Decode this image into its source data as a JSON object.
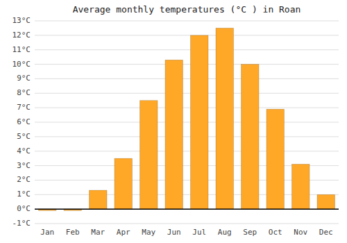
{
  "chart_data": {
    "type": "bar",
    "title": "Average monthly temperatures (°C ) in Roan",
    "categories": [
      "Jan",
      "Feb",
      "Mar",
      "Apr",
      "May",
      "Jun",
      "Jul",
      "Aug",
      "Sep",
      "Oct",
      "Nov",
      "Dec"
    ],
    "values": [
      -0.1,
      -0.1,
      1.3,
      3.5,
      7.5,
      10.3,
      12.0,
      12.5,
      10.0,
      6.9,
      3.1,
      1.0
    ],
    "color": "#FFA726",
    "ylim": [
      -1,
      13
    ],
    "yticks": [
      {
        "value": -1,
        "label": "-1°C"
      },
      {
        "value": 0,
        "label": "0°C"
      },
      {
        "value": 1,
        "label": "1°C"
      },
      {
        "value": 2,
        "label": "2°C"
      },
      {
        "value": 3,
        "label": "3°C"
      },
      {
        "value": 4,
        "label": "4°C"
      },
      {
        "value": 5,
        "label": "5°C"
      },
      {
        "value": 6,
        "label": "6°C"
      },
      {
        "value": 7,
        "label": "7°C"
      },
      {
        "value": 8,
        "label": "8°C"
      },
      {
        "value": 9,
        "label": "9°C"
      },
      {
        "value": 10,
        "label": "10°C"
      },
      {
        "value": 11,
        "label": "11°C"
      },
      {
        "value": 12,
        "label": "12°C"
      },
      {
        "value": 13,
        "label": "13°C"
      }
    ],
    "grid": true
  }
}
